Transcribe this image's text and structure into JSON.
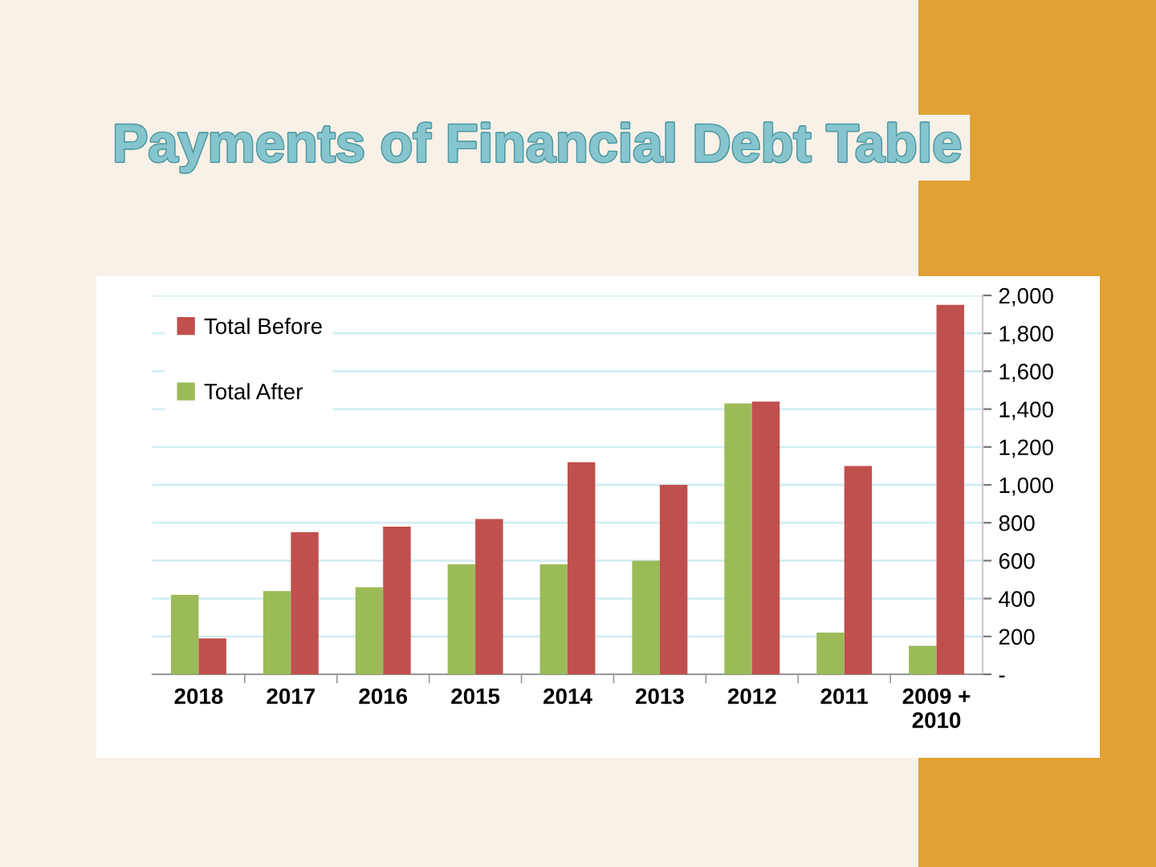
{
  "chart_data": {
    "type": "bar",
    "title": "Payments of Financial Debt Table",
    "categories": [
      "2018",
      "2017",
      "2016",
      "2015",
      "2014",
      "2013",
      "2012",
      "2011",
      "2009 +\n2010"
    ],
    "series": [
      {
        "name": "Total After",
        "color": "#9bbb59",
        "values": [
          420,
          440,
          460,
          580,
          580,
          600,
          1430,
          220,
          150
        ]
      },
      {
        "name": "Total Before",
        "color": "#c0504d",
        "values": [
          190,
          750,
          780,
          820,
          1120,
          1000,
          1440,
          1100,
          1950
        ]
      }
    ],
    "ylim": [
      0,
      2000
    ],
    "yticks": [
      {
        "value": 0,
        "label": "-"
      },
      {
        "value": 200,
        "label": "200"
      },
      {
        "value": 400,
        "label": "400"
      },
      {
        "value": 600,
        "label": "600"
      },
      {
        "value": 800,
        "label": "800"
      },
      {
        "value": 1000,
        "label": "1,000"
      },
      {
        "value": 1200,
        "label": "1,200"
      },
      {
        "value": 1400,
        "label": "1,400"
      },
      {
        "value": 1600,
        "label": "1,600"
      },
      {
        "value": 1800,
        "label": "1,800"
      },
      {
        "value": 2000,
        "label": "2,000"
      }
    ],
    "grid": "y",
    "legend": "top left"
  }
}
